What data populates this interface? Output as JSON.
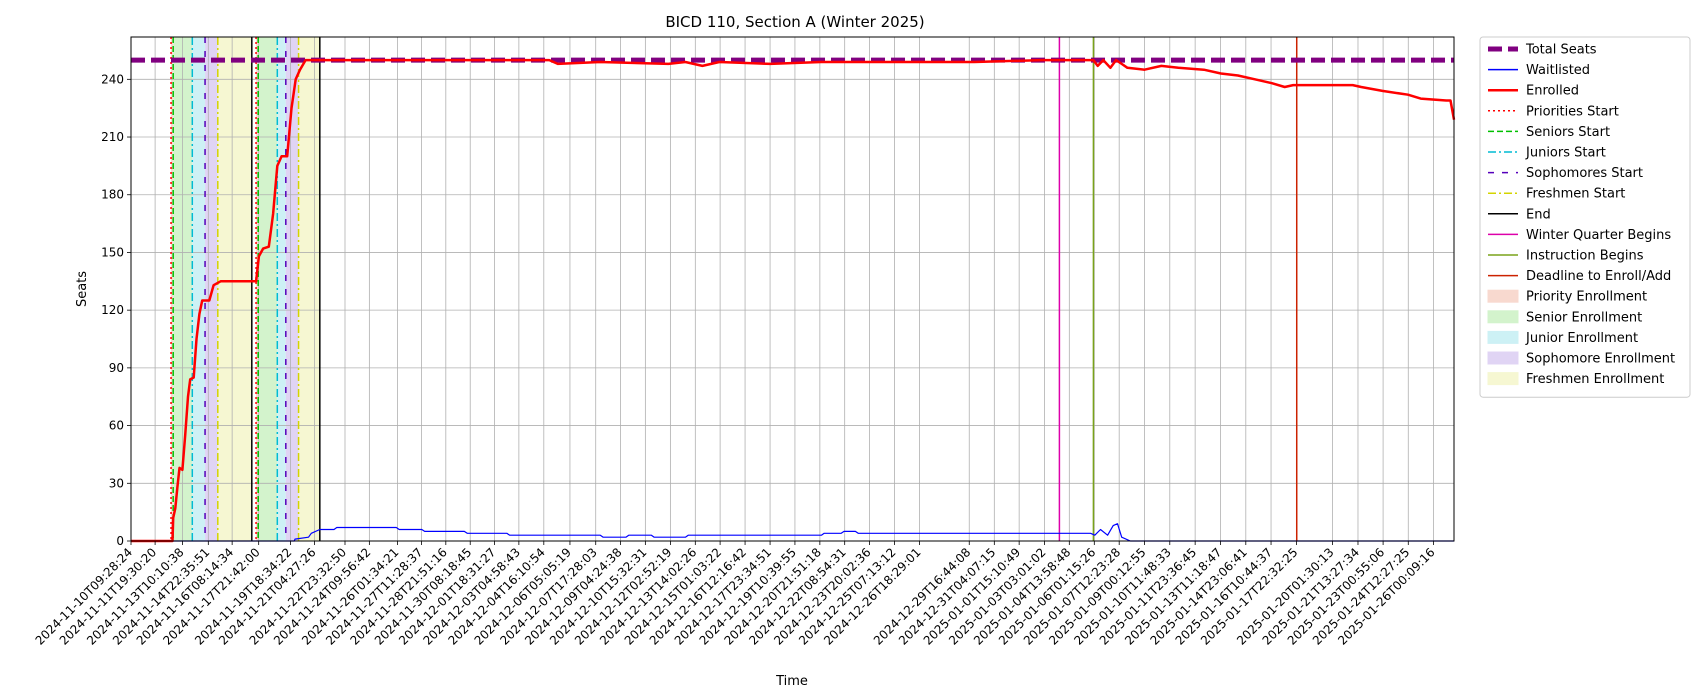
{
  "chart_data": {
    "type": "line",
    "title": "BICD 110, Section A (Winter 2025)",
    "xlabel": "Time",
    "ylabel": "Seats",
    "ylim": [
      0,
      262
    ],
    "y_ticks": [
      0,
      30,
      60,
      90,
      120,
      150,
      180,
      210,
      240
    ],
    "x_range": [
      "2024-11-10T09:28:24",
      "2025-01-27T05:00:00"
    ],
    "x_ticks": [
      "2024-11-10T09:28:24",
      "2024-11-11T19:30:20",
      "2024-11-13T10:10:38",
      "2024-11-14T22:35:51",
      "2024-11-16T08:14:34",
      "2024-11-17T21:42:00",
      "2024-11-19T18:34:22",
      "2024-11-21T04:27:26",
      "2024-11-22T23:32:50",
      "2024-11-24T09:56:42",
      "2024-11-26T01:34:21",
      "2024-11-27T11:28:37",
      "2024-11-28T21:51:16",
      "2024-11-30T08:18:45",
      "2024-12-01T18:31:27",
      "2024-12-03T04:58:43",
      "2024-12-04T16:10:54",
      "2024-12-06T05:05:19",
      "2024-12-07T17:28:03",
      "2024-12-09T04:24:38",
      "2024-12-10T15:32:31",
      "2024-12-12T02:52:19",
      "2024-12-13T14:02:26",
      "2024-12-15T01:03:22",
      "2024-12-16T12:16:42",
      "2024-12-17T23:34:51",
      "2024-12-19T10:39:55",
      "2024-12-20T21:51:18",
      "2024-12-22T08:54:31",
      "2024-12-23T20:02:36",
      "2024-12-25T07:13:12",
      "2024-12-26T18:29:01",
      "2024-12-29T16:44:08",
      "2024-12-31T04:07:15",
      "2025-01-01T15:10:49",
      "2025-01-03T03:01:02",
      "2025-01-04T13:58:48",
      "2025-01-06T01:15:26",
      "2025-01-07T12:23:28",
      "2025-01-09T00:12:55",
      "2025-01-10T11:48:33",
      "2025-01-11T23:36:45",
      "2025-01-13T11:18:47",
      "2025-01-14T23:06:41",
      "2025-01-16T10:44:37",
      "2025-01-17T22:32:25",
      "2025-01-20T01:30:13",
      "2025-01-21T13:27:34",
      "2025-01-23T00:55:06",
      "2025-01-24T12:27:25",
      "2025-01-26T00:09:16"
    ],
    "grid": true,
    "legend_placement": "outside-right",
    "legend": [
      {
        "label": "Total Seats",
        "kind": "line",
        "color": "#800080",
        "dash": "dashed-bold"
      },
      {
        "label": "Waitlisted",
        "kind": "line",
        "color": "#0000ff",
        "dash": "solid"
      },
      {
        "label": "Enrolled",
        "kind": "line",
        "color": "#ff0000",
        "dash": "solid-bold"
      },
      {
        "label": "Priorities Start",
        "kind": "line",
        "color": "#ff0000",
        "dash": "dotted"
      },
      {
        "label": "Seniors Start",
        "kind": "line",
        "color": "#00c000",
        "dash": "dashed"
      },
      {
        "label": "Juniors Start",
        "kind": "line",
        "color": "#00bcd4",
        "dash": "dashdot"
      },
      {
        "label": "Sophomores Start",
        "kind": "line",
        "color": "#5500bb",
        "dash": "loosedash"
      },
      {
        "label": "Freshmen Start",
        "kind": "line",
        "color": "#d4d400",
        "dash": "dashdot"
      },
      {
        "label": "End",
        "kind": "line",
        "color": "#000000",
        "dash": "solid"
      },
      {
        "label": "Winter Quarter Begins",
        "kind": "line",
        "color": "#dd00aa",
        "dash": "solid"
      },
      {
        "label": "Instruction Begins",
        "kind": "line",
        "color": "#7aa31a",
        "dash": "solid"
      },
      {
        "label": "Deadline to Enroll/Add",
        "kind": "line",
        "color": "#cc2200",
        "dash": "solid"
      },
      {
        "label": "Priority Enrollment",
        "kind": "patch",
        "color": "#f8d9cf"
      },
      {
        "label": "Senior Enrollment",
        "kind": "patch",
        "color": "#d3f3cc"
      },
      {
        "label": "Junior Enrollment",
        "kind": "patch",
        "color": "#cdf1f5"
      },
      {
        "label": "Sophomore Enrollment",
        "kind": "patch",
        "color": "#e0d4f4"
      },
      {
        "label": "Freshmen Enrollment",
        "kind": "patch",
        "color": "#f6f7d2"
      }
    ],
    "spans": [
      {
        "label": "Priority Enrollment",
        "start": "2024-11-12T18:00:00",
        "end": "2024-11-12T21:00:00"
      },
      {
        "label": "Senior Enrollment",
        "start": "2024-11-12T21:00:00",
        "end": "2024-11-14T00:00:00"
      },
      {
        "label": "Junior Enrollment",
        "start": "2024-11-14T00:00:00",
        "end": "2024-11-14T18:00:00"
      },
      {
        "label": "Sophomore Enrollment",
        "start": "2024-11-14T18:00:00",
        "end": "2024-11-15T12:00:00"
      },
      {
        "label": "Freshmen Enrollment",
        "start": "2024-11-15T12:00:00",
        "end": "2024-11-17T12:00:00"
      },
      {
        "label": "Priority Enrollment",
        "start": "2024-11-17T18:00:00",
        "end": "2024-11-17T21:00:00"
      },
      {
        "label": "Senior Enrollment",
        "start": "2024-11-17T21:00:00",
        "end": "2024-11-19T00:00:00"
      },
      {
        "label": "Junior Enrollment",
        "start": "2024-11-19T00:00:00",
        "end": "2024-11-19T12:00:00"
      },
      {
        "label": "Sophomore Enrollment",
        "start": "2024-11-19T12:00:00",
        "end": "2024-11-20T06:00:00"
      },
      {
        "label": "Freshmen Enrollment",
        "start": "2024-11-20T06:00:00",
        "end": "2024-11-21T12:00:00"
      }
    ],
    "vlines": [
      {
        "label": "Priorities Start",
        "x": "2024-11-12T18:00:00"
      },
      {
        "label": "Seniors Start",
        "x": "2024-11-12T21:00:00"
      },
      {
        "label": "Juniors Start",
        "x": "2024-11-14T00:00:00"
      },
      {
        "label": "Sophomores Start",
        "x": "2024-11-14T18:00:00"
      },
      {
        "label": "Freshmen Start",
        "x": "2024-11-15T12:00:00"
      },
      {
        "label": "End",
        "x": "2024-11-17T12:00:00"
      },
      {
        "label": "Priorities Start",
        "x": "2024-11-17T18:00:00"
      },
      {
        "label": "Seniors Start",
        "x": "2024-11-17T21:00:00"
      },
      {
        "label": "Juniors Start",
        "x": "2024-11-19T00:00:00"
      },
      {
        "label": "Sophomores Start",
        "x": "2024-11-19T12:00:00"
      },
      {
        "label": "Freshmen Start",
        "x": "2024-11-20T06:00:00"
      },
      {
        "label": "End",
        "x": "2024-11-21T12:00:00"
      },
      {
        "label": "Winter Quarter Begins",
        "x": "2025-01-04T00:00:00"
      },
      {
        "label": "Instruction Begins",
        "x": "2025-01-06T00:00:00"
      },
      {
        "label": "Deadline to Enroll/Add",
        "x": "2025-01-17T23:00:00"
      }
    ],
    "series": [
      {
        "name": "Total Seats",
        "points": [
          [
            "2024-11-10T09:28:24",
            250
          ],
          [
            "2025-01-27T05:00:00",
            250
          ]
        ]
      },
      {
        "name": "Waitlisted",
        "points": [
          [
            "2024-11-10T09:28:24",
            0
          ],
          [
            "2024-11-20T00:00:00",
            0
          ],
          [
            "2024-11-20T01:00:00",
            1
          ],
          [
            "2024-11-20T20:00:00",
            2
          ],
          [
            "2024-11-21T00:00:00",
            4
          ],
          [
            "2024-11-21T12:00:00",
            6
          ],
          [
            "2024-11-22T08:00:00",
            6
          ],
          [
            "2024-11-22T12:00:00",
            7
          ],
          [
            "2024-11-26T00:00:00",
            7
          ],
          [
            "2024-11-26T04:00:00",
            6
          ],
          [
            "2024-11-27T12:00:00",
            6
          ],
          [
            "2024-11-27T16:00:00",
            5
          ],
          [
            "2024-11-30T00:00:00",
            5
          ],
          [
            "2024-11-30T04:00:00",
            4
          ],
          [
            "2024-12-02T12:00:00",
            4
          ],
          [
            "2024-12-02T16:00:00",
            3
          ],
          [
            "2024-12-08T00:00:00",
            3
          ],
          [
            "2024-12-08T04:00:00",
            2
          ],
          [
            "2024-12-09T12:00:00",
            2
          ],
          [
            "2024-12-09T16:00:00",
            3
          ],
          [
            "2024-12-11T00:00:00",
            3
          ],
          [
            "2024-12-11T04:00:00",
            2
          ],
          [
            "2024-12-13T00:00:00",
            2
          ],
          [
            "2024-12-13T04:00:00",
            3
          ],
          [
            "2024-12-21T00:00:00",
            3
          ],
          [
            "2024-12-21T04:00:00",
            4
          ],
          [
            "2024-12-22T04:00:00",
            4
          ],
          [
            "2024-12-22T08:00:00",
            5
          ],
          [
            "2024-12-23T00:00:00",
            5
          ],
          [
            "2024-12-23T04:00:00",
            4
          ],
          [
            "2025-01-05T20:00:00",
            4
          ],
          [
            "2025-01-06T02:00:00",
            3
          ],
          [
            "2025-01-06T10:00:00",
            6
          ],
          [
            "2025-01-06T20:00:00",
            3
          ],
          [
            "2025-01-07T04:00:00",
            8
          ],
          [
            "2025-01-07T10:00:00",
            9
          ],
          [
            "2025-01-07T16:00:00",
            2
          ],
          [
            "2025-01-08T04:00:00",
            0
          ],
          [
            "2025-01-27T05:00:00",
            0
          ]
        ]
      },
      {
        "name": "Enrolled",
        "points": [
          [
            "2024-11-10T09:28:24",
            0
          ],
          [
            "2024-11-12T20:00:00",
            0
          ],
          [
            "2024-11-12T21:00:00",
            12
          ],
          [
            "2024-11-13T00:00:00",
            17
          ],
          [
            "2024-11-13T03:00:00",
            28
          ],
          [
            "2024-11-13T06:00:00",
            38
          ],
          [
            "2024-11-13T10:00:00",
            37
          ],
          [
            "2024-11-13T14:00:00",
            55
          ],
          [
            "2024-11-13T18:00:00",
            75
          ],
          [
            "2024-11-13T21:00:00",
            84
          ],
          [
            "2024-11-14T02:00:00",
            85
          ],
          [
            "2024-11-14T06:00:00",
            105
          ],
          [
            "2024-11-14T10:00:00",
            118
          ],
          [
            "2024-11-14T14:00:00",
            125
          ],
          [
            "2024-11-15T00:00:00",
            125
          ],
          [
            "2024-11-15T06:00:00",
            133
          ],
          [
            "2024-11-15T16:00:00",
            135
          ],
          [
            "2024-11-17T18:00:00",
            135
          ],
          [
            "2024-11-17T22:00:00",
            148
          ],
          [
            "2024-11-18T04:00:00",
            152
          ],
          [
            "2024-11-18T12:00:00",
            153
          ],
          [
            "2024-11-18T18:00:00",
            170
          ],
          [
            "2024-11-19T00:00:00",
            195
          ],
          [
            "2024-11-19T06:00:00",
            200
          ],
          [
            "2024-11-19T14:00:00",
            200
          ],
          [
            "2024-11-19T20:00:00",
            225
          ],
          [
            "2024-11-20T02:00:00",
            240
          ],
          [
            "2024-11-20T08:00:00",
            245
          ],
          [
            "2024-11-20T16:00:00",
            250
          ],
          [
            "2024-12-05T00:00:00",
            250
          ],
          [
            "2024-12-05T12:00:00",
            248
          ],
          [
            "2024-12-08T00:00:00",
            249
          ],
          [
            "2024-12-12T00:00:00",
            248
          ],
          [
            "2024-12-13T00:00:00",
            249
          ],
          [
            "2024-12-14T00:00:00",
            247
          ],
          [
            "2024-12-15T00:00:00",
            249
          ],
          [
            "2024-12-18T00:00:00",
            248
          ],
          [
            "2024-12-21T00:00:00",
            249
          ],
          [
            "2024-12-30T00:00:00",
            249
          ],
          [
            "2025-01-03T00:00:00",
            250
          ],
          [
            "2025-01-06T00:00:00",
            250
          ],
          [
            "2025-01-06T06:00:00",
            247
          ],
          [
            "2025-01-06T14:00:00",
            250
          ],
          [
            "2025-01-07T00:00:00",
            246
          ],
          [
            "2025-01-07T08:00:00",
            250
          ],
          [
            "2025-01-07T16:00:00",
            248
          ],
          [
            "2025-01-08T00:00:00",
            246
          ],
          [
            "2025-01-09T00:00:00",
            245
          ],
          [
            "2025-01-10T00:00:00",
            247
          ],
          [
            "2025-01-11T00:00:00",
            246
          ],
          [
            "2025-01-12T12:00:00",
            245
          ],
          [
            "2025-01-13T12:00:00",
            243
          ],
          [
            "2025-01-14T12:00:00",
            242
          ],
          [
            "2025-01-15T12:00:00",
            240
          ],
          [
            "2025-01-16T12:00:00",
            238
          ],
          [
            "2025-01-17T06:00:00",
            236
          ],
          [
            "2025-01-17T18:00:00",
            237
          ],
          [
            "2025-01-21T06:00:00",
            237
          ],
          [
            "2025-01-21T18:00:00",
            236
          ],
          [
            "2025-01-23T00:00:00",
            234
          ],
          [
            "2025-01-24T12:00:00",
            232
          ],
          [
            "2025-01-25T06:00:00",
            230
          ],
          [
            "2025-01-26T18:00:00",
            229
          ],
          [
            "2025-01-27T00:00:00",
            229
          ],
          [
            "2025-01-27T05:00:00",
            219
          ]
        ]
      }
    ]
  }
}
